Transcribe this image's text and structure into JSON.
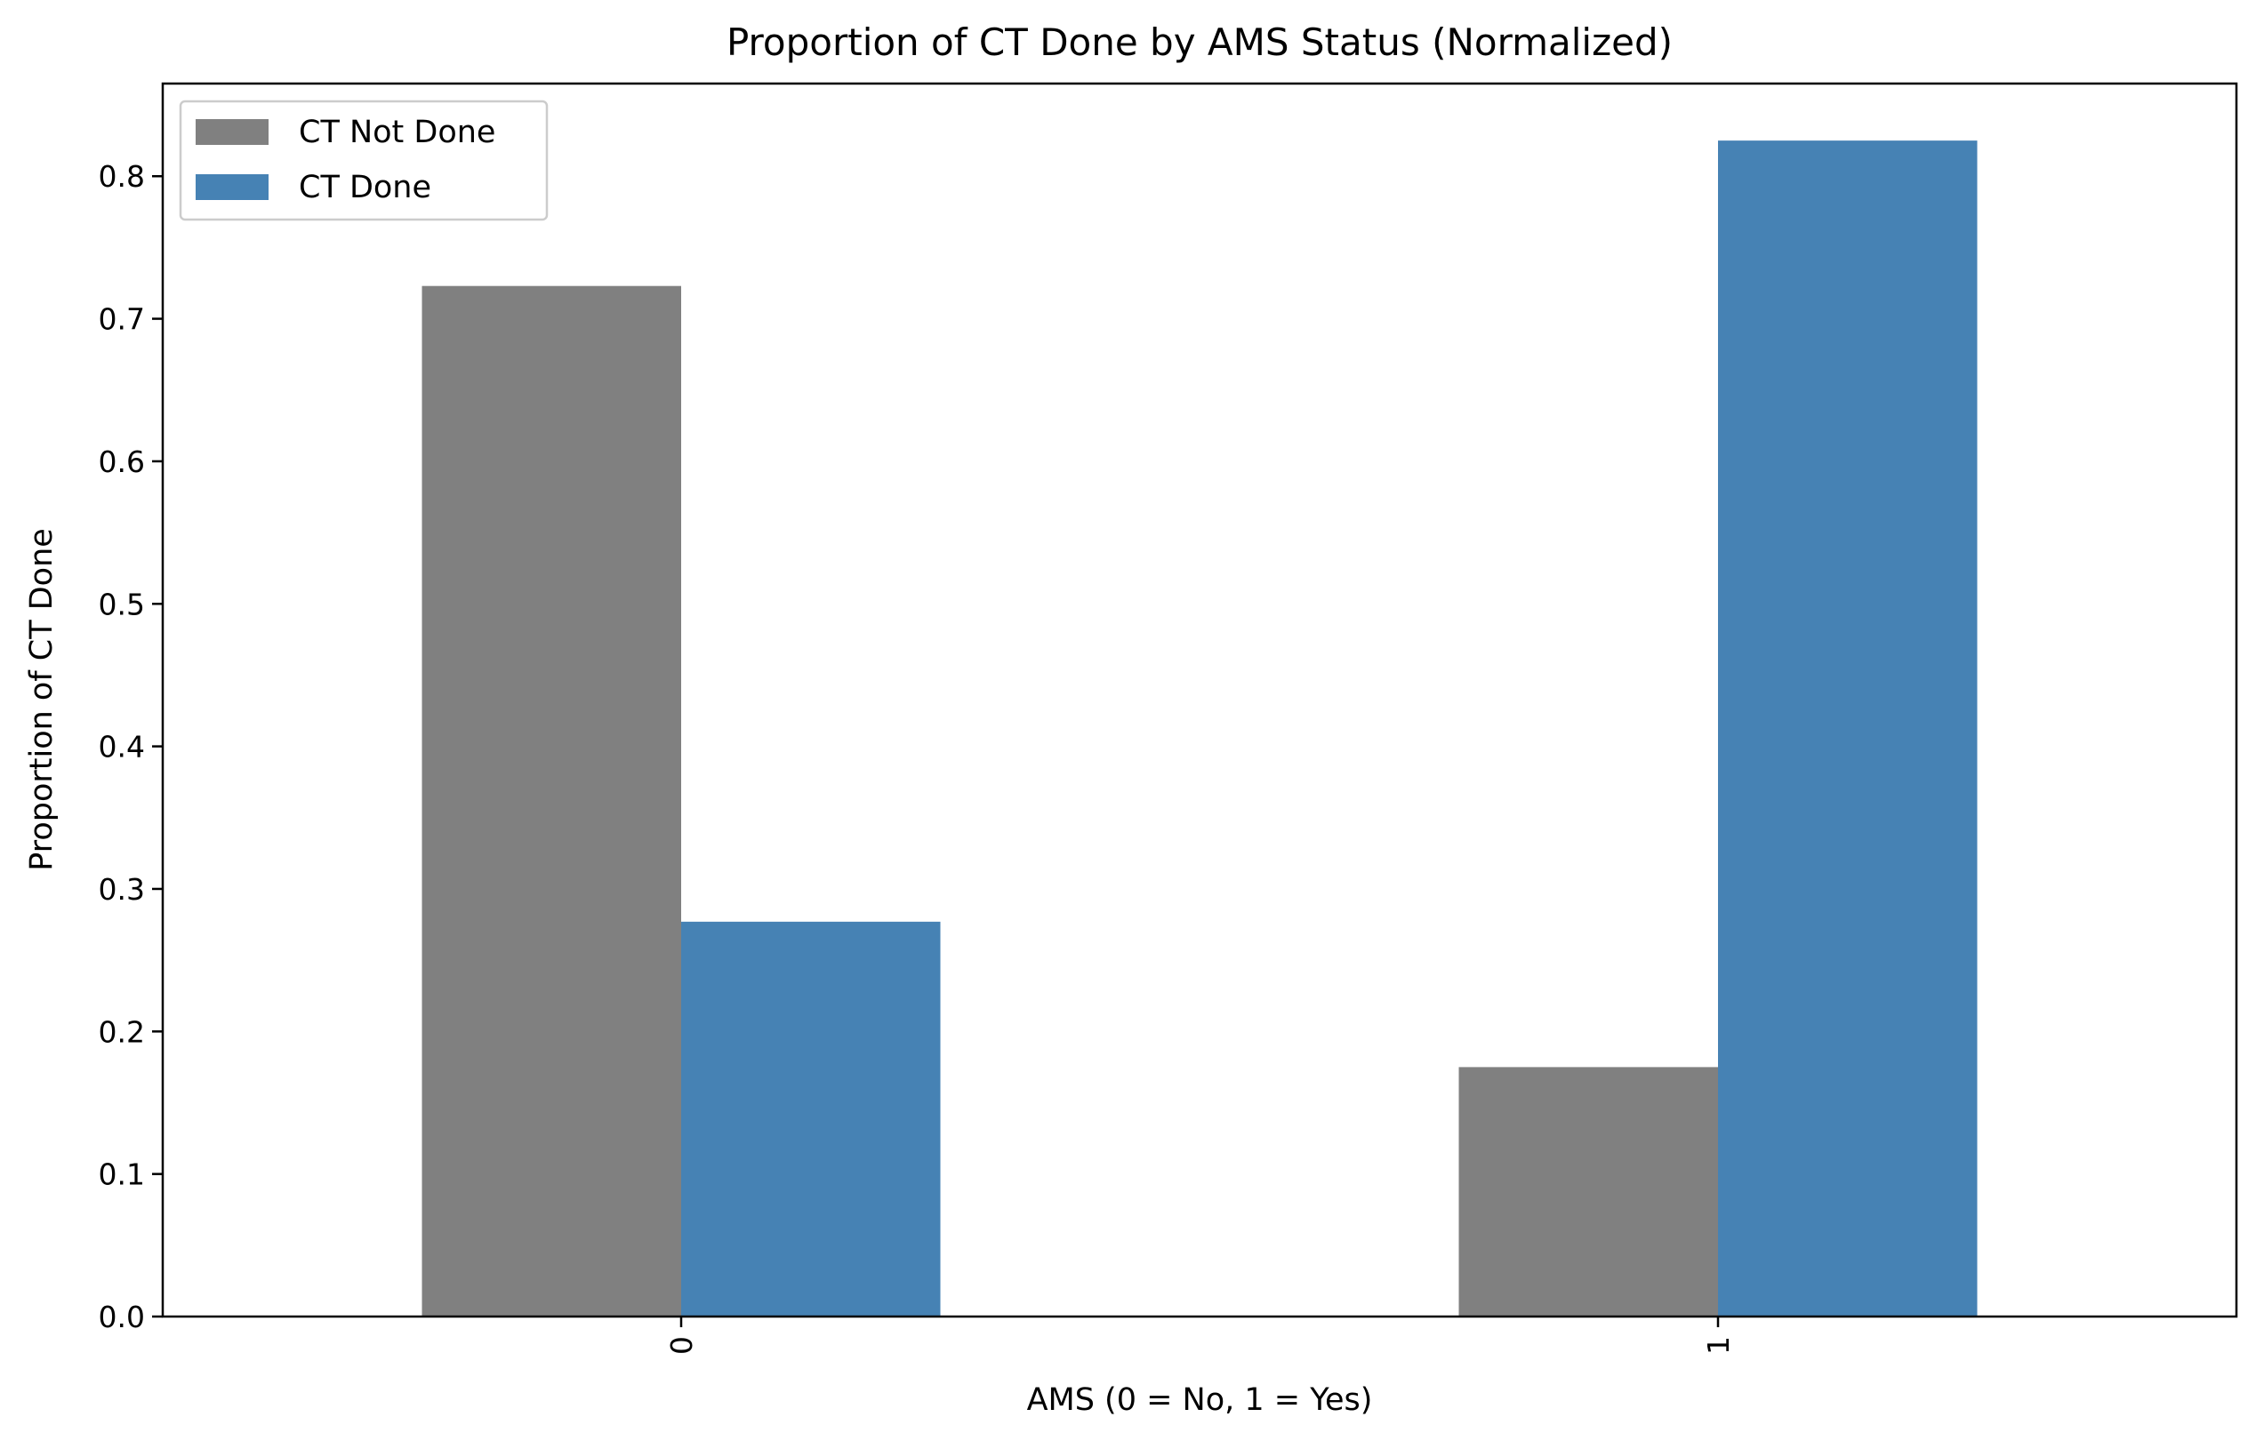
{
  "chart_data": {
    "type": "bar",
    "title": "Proportion of CT Done by AMS Status (Normalized)",
    "xlabel": "AMS (0 = No, 1 = Yes)",
    "ylabel": "Proportion of CT Done",
    "categories": [
      "0",
      "1"
    ],
    "series": [
      {
        "name": "CT Not Done",
        "values": [
          0.723,
          0.175
        ],
        "color": "#808080"
      },
      {
        "name": "CT Done",
        "values": [
          0.277,
          0.825
        ],
        "color": "#4682b4"
      }
    ],
    "ylim": [
      0,
      0.865
    ],
    "yticks": [
      0.0,
      0.1,
      0.2,
      0.3,
      0.4,
      0.5,
      0.6,
      0.7,
      0.8
    ],
    "ytick_labels": [
      "0.0",
      "0.1",
      "0.2",
      "0.3",
      "0.4",
      "0.5",
      "0.6",
      "0.7",
      "0.8"
    ],
    "xtick_rotation": 90,
    "grid": false,
    "legend_position": "upper-left"
  }
}
